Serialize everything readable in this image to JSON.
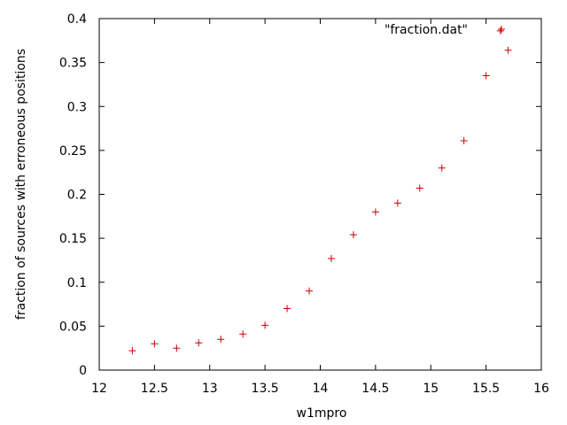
{
  "chart_data": {
    "type": "scatter",
    "title": "",
    "xlabel": "w1mpro",
    "ylabel": "fraction of sources with erroneous positions",
    "xlim": [
      12,
      16
    ],
    "ylim": [
      0,
      0.4
    ],
    "xticks": [
      12,
      12.5,
      13,
      13.5,
      14,
      14.5,
      15,
      15.5,
      16
    ],
    "xtick_labels": [
      "12",
      "12.5",
      "13",
      "13.5",
      "14",
      "14.5",
      "15",
      "15.5",
      "16"
    ],
    "yticks": [
      0,
      0.05,
      0.1,
      0.15,
      0.2,
      0.25,
      0.3,
      0.35,
      0.4
    ],
    "ytick_labels": [
      "0",
      "0.05",
      "0.1",
      "0.15",
      "0.2",
      "0.25",
      "0.3",
      "0.35",
      "0.4"
    ],
    "grid": false,
    "legend": {
      "position": "top-right"
    },
    "series": [
      {
        "name": "\"fraction.dat\"",
        "color": "#cc0000",
        "marker": "plus",
        "x": [
          12.3,
          12.5,
          12.7,
          12.9,
          13.1,
          13.3,
          13.5,
          13.7,
          13.9,
          14.1,
          14.3,
          14.5,
          14.7,
          14.9,
          15.1,
          15.3,
          15.5,
          15.63,
          15.7
        ],
        "y": [
          0.022,
          0.03,
          0.025,
          0.031,
          0.035,
          0.041,
          0.051,
          0.07,
          0.09,
          0.127,
          0.154,
          0.18,
          0.19,
          0.207,
          0.23,
          0.261,
          0.335,
          0.386,
          0.364
        ]
      }
    ]
  }
}
